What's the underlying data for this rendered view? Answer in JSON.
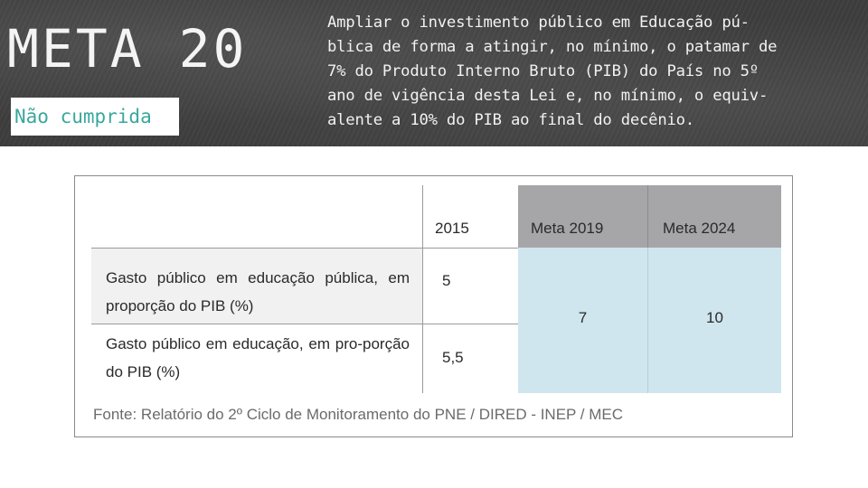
{
  "header": {
    "title": "META 20",
    "status": "Não cumprida",
    "goal_lines": [
      "Ampliar o investimento público em Educação pú-",
      "blica de forma a atingir, no mínimo, o patamar de",
      "7% do Produto Interno Bruto (PIB) do País no 5º",
      "ano de vigência desta Lei e, no mínimo, o equiv-",
      "alente a 10% do PIB ao final do decênio."
    ]
  },
  "table": {
    "columns": [
      "",
      "2015",
      "Meta 2019",
      "Meta 2024"
    ],
    "rows": [
      {
        "label": "Gasto público em educação pública, em proporção do PIB  (%)",
        "v2015": "5"
      },
      {
        "label": "Gasto público em educação, em pro-porção do PIB (%)",
        "v2015": "5,5"
      }
    ],
    "meta_2019": "7",
    "meta_2024": "10",
    "source": "Fonte: Relatório do 2º Ciclo de Monitoramento do PNE / DIRED - INEP / MEC"
  },
  "colors": {
    "banner_bg": "#3e3e3e",
    "status_text": "#3aa79d",
    "meta_header_bg": "#a6a6a9",
    "meta_cell_bg": "#cfe6ee",
    "row_shade": "#f1f1f1"
  }
}
